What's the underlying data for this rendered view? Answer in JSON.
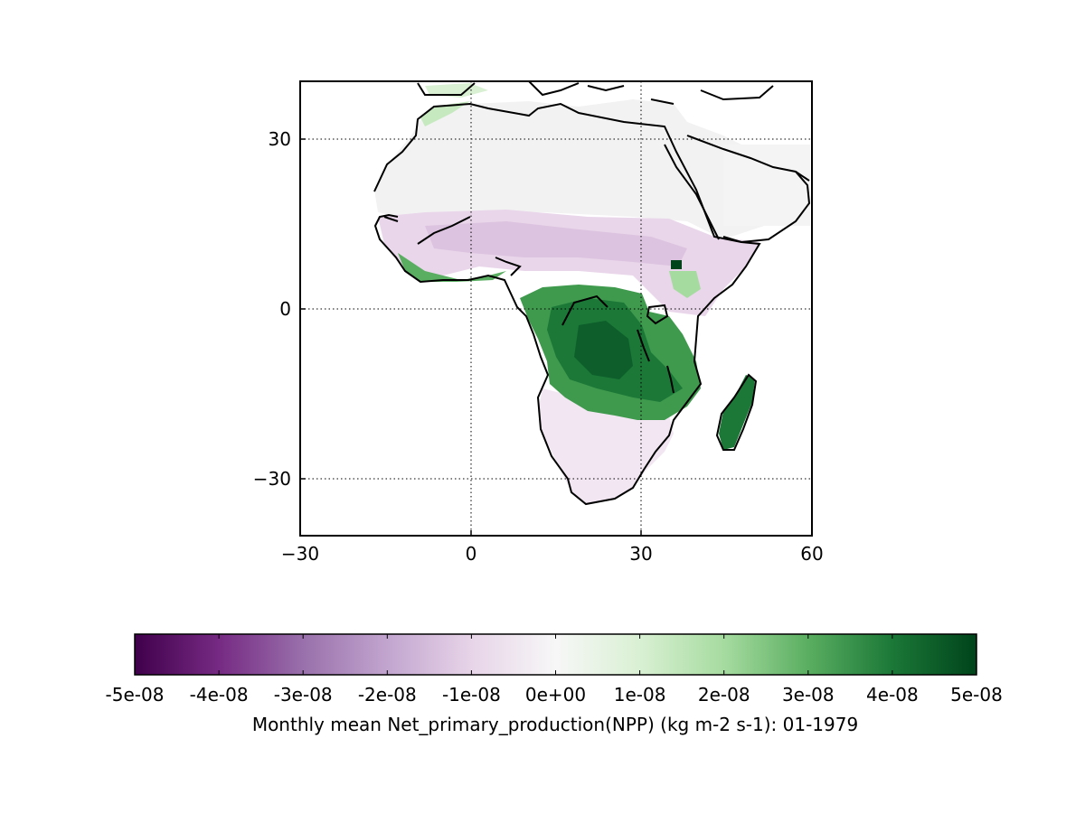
{
  "map": {
    "lon_range": [
      -30,
      60
    ],
    "lat_range": [
      -40,
      40
    ],
    "lon_ticks": [
      -30,
      0,
      30,
      60
    ],
    "lat_ticks": [
      -30,
      0,
      30
    ],
    "lon_tick_labels": [
      "−30",
      "0",
      "30",
      "60"
    ],
    "lat_tick_labels": [
      "−30",
      "0",
      "30"
    ],
    "gridlines": "dotted",
    "region": "Africa"
  },
  "colorbar": {
    "range": [
      -5e-08,
      5e-08
    ],
    "colormap": "PRGn",
    "colors": {
      "min": "#40004b",
      "mid": "#f7f7f7",
      "max": "#00441b"
    },
    "tick_labels": [
      "-5e-08",
      "-4e-08",
      "-3e-08",
      "-2e-08",
      "-1e-08",
      "0e+00",
      "1e-08",
      "2e-08",
      "3e-08",
      "4e-08",
      "5e-08"
    ],
    "caption": "Monthly mean Net_primary_production(NPP) (kg m-2 s-1): 01-1979"
  }
}
